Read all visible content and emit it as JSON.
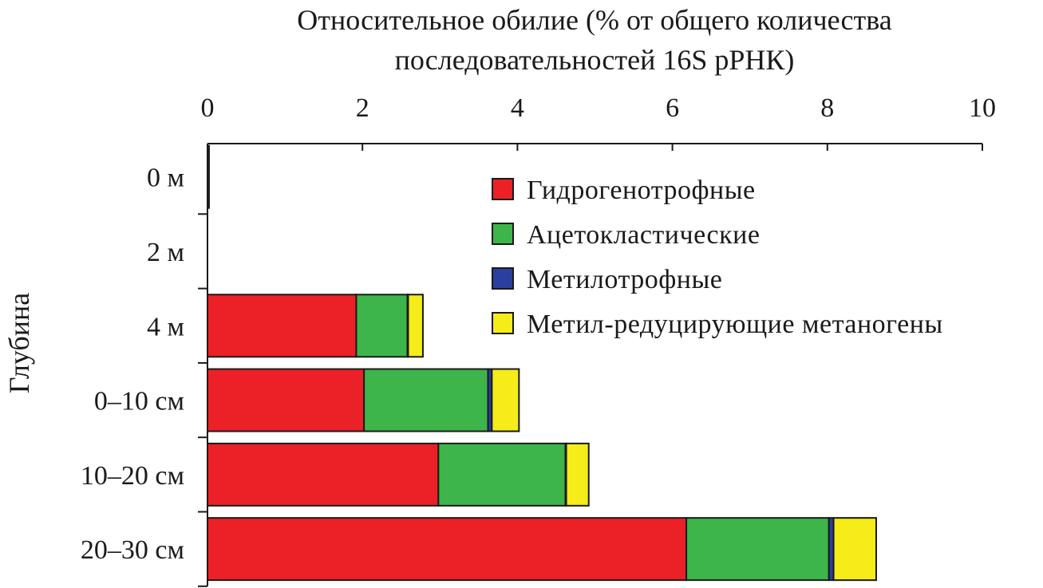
{
  "chart_data": {
    "type": "bar",
    "orientation": "horizontal",
    "stacked": true,
    "title": "",
    "xlabel_lines": [
      "Относительное обилие (% от общего количества",
      "последовательностей 16S рРНК)"
    ],
    "ylabel": "Глубина",
    "xlim": [
      0,
      10
    ],
    "x_ticks": [
      "0",
      "2",
      "4",
      "6",
      "8",
      "10"
    ],
    "x_axis_position": "top",
    "categories": [
      "0 м",
      "2 м",
      "4 м",
      "0–10 см",
      "10–20 см",
      "20–30 см"
    ],
    "series": [
      {
        "name": "Гидрогенотрофные",
        "color": "#ec2127",
        "values": [
          0.02,
          0.0,
          1.92,
          2.02,
          2.98,
          6.18
        ]
      },
      {
        "name": "Ацетокластические",
        "color": "#3db54a",
        "values": [
          0.0,
          0.0,
          0.66,
          1.6,
          1.64,
          1.84
        ]
      },
      {
        "name": "Метилотрофные",
        "color": "#2b3fa0",
        "values": [
          0.0,
          0.0,
          0.01,
          0.05,
          0.01,
          0.06
        ]
      },
      {
        "name": "Метил-редуцирующие метаногены",
        "color": "#f5ec19",
        "values": [
          0.0,
          0.0,
          0.19,
          0.35,
          0.29,
          0.55
        ]
      }
    ],
    "legend_position": "top-right",
    "grid": false
  }
}
